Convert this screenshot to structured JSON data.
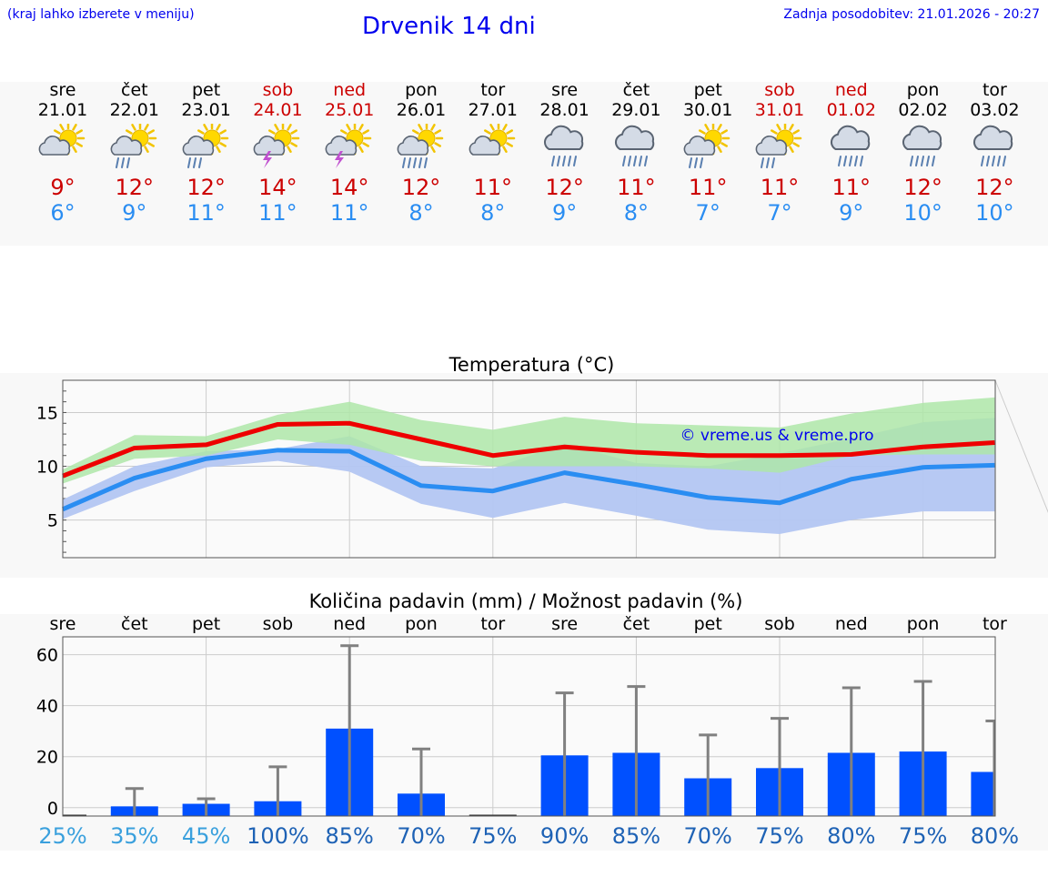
{
  "header": {
    "hint": "(kraj lahko izberete v meniju)",
    "title": "Drvenik 14 dni",
    "updated": "Zadnja posodobitev: 21.01.2026 - 20:27"
  },
  "forecast": [
    {
      "day": "sre",
      "date": "21.01",
      "weekend": false,
      "icon": "sun-cloud-icon",
      "tmax": "9°",
      "tmin": "6°"
    },
    {
      "day": "čet",
      "date": "22.01",
      "weekend": false,
      "icon": "sun-cloud-rain-icon",
      "tmax": "12°",
      "tmin": "9°"
    },
    {
      "day": "pet",
      "date": "23.01",
      "weekend": false,
      "icon": "sun-cloud-rain-icon",
      "tmax": "12°",
      "tmin": "11°"
    },
    {
      "day": "sob",
      "date": "24.01",
      "weekend": true,
      "icon": "sun-cloud-storm-icon",
      "tmax": "14°",
      "tmin": "11°"
    },
    {
      "day": "ned",
      "date": "25.01",
      "weekend": true,
      "icon": "sun-cloud-storm-icon",
      "tmax": "14°",
      "tmin": "11°"
    },
    {
      "day": "pon",
      "date": "26.01",
      "weekend": false,
      "icon": "sun-cloud-heavy-rain-icon",
      "tmax": "12°",
      "tmin": "8°"
    },
    {
      "day": "tor",
      "date": "27.01",
      "weekend": false,
      "icon": "sun-cloud-icon",
      "tmax": "11°",
      "tmin": "8°"
    },
    {
      "day": "sre",
      "date": "28.01",
      "weekend": false,
      "icon": "cloud-heavy-rain-icon",
      "tmax": "12°",
      "tmin": "9°"
    },
    {
      "day": "čet",
      "date": "29.01",
      "weekend": false,
      "icon": "cloud-heavy-rain-icon",
      "tmax": "11°",
      "tmin": "8°"
    },
    {
      "day": "pet",
      "date": "30.01",
      "weekend": false,
      "icon": "sun-cloud-rain-icon",
      "tmax": "11°",
      "tmin": "7°"
    },
    {
      "day": "sob",
      "date": "31.01",
      "weekend": true,
      "icon": "sun-cloud-rain-icon",
      "tmax": "11°",
      "tmin": "7°"
    },
    {
      "day": "ned",
      "date": "01.02",
      "weekend": true,
      "icon": "cloud-heavy-rain-icon",
      "tmax": "11°",
      "tmin": "9°"
    },
    {
      "day": "pon",
      "date": "02.02",
      "weekend": false,
      "icon": "cloud-heavy-rain-icon",
      "tmax": "12°",
      "tmin": "10°"
    },
    {
      "day": "tor",
      "date": "03.02",
      "weekend": false,
      "icon": "cloud-heavy-rain-icon",
      "tmax": "12°",
      "tmin": "10°"
    }
  ],
  "colors": {
    "max_line": "#ee0000",
    "min_line": "#2a8df2",
    "max_band": "#aee6a8",
    "min_band": "#b3c6f2",
    "overlap_band": "#86c4a6",
    "bar": "#0050ff",
    "whisker": "#808080"
  },
  "chart_data": [
    {
      "type": "line",
      "title": "Temperatura (°C)",
      "watermark": "© vreme.us & vreme.pro",
      "ylim": [
        1.5,
        18
      ],
      "yticks": [
        5,
        10,
        15
      ],
      "grid": true,
      "series": [
        {
          "name": "max",
          "values": [
            9.1,
            11.7,
            12.0,
            13.9,
            14.0,
            12.5,
            11.0,
            11.8,
            11.3,
            11.0,
            11.0,
            11.1,
            11.8,
            12.2
          ]
        },
        {
          "name": "min",
          "values": [
            6.0,
            8.9,
            10.7,
            11.5,
            11.4,
            8.2,
            7.7,
            9.4,
            8.3,
            7.1,
            6.6,
            8.8,
            9.9,
            10.1
          ]
        },
        {
          "name": "max_band_low",
          "values": [
            8.4,
            10.7,
            11.0,
            12.5,
            12.0,
            10.5,
            10.0,
            10.0,
            10.0,
            9.8,
            9.4,
            11.0,
            11.1,
            11.1
          ]
        },
        {
          "name": "max_band_high",
          "values": [
            9.7,
            12.9,
            12.8,
            14.8,
            16.0,
            14.3,
            13.4,
            14.6,
            14.0,
            13.8,
            13.6,
            14.9,
            15.9,
            16.4
          ]
        },
        {
          "name": "min_band_low",
          "values": [
            5.1,
            7.7,
            9.9,
            10.5,
            9.5,
            6.5,
            5.2,
            6.6,
            5.4,
            4.1,
            3.7,
            5.0,
            5.8,
            5.8
          ]
        },
        {
          "name": "min_band_high",
          "values": [
            6.9,
            10.0,
            11.4,
            11.6,
            12.8,
            10.0,
            9.8,
            12.1,
            10.3,
            10.0,
            11.2,
            12.6,
            14.1,
            14.5
          ]
        }
      ]
    },
    {
      "type": "bar",
      "title": "Količina padavin (mm) / Možnost padavin (%)",
      "categories": [
        "sre",
        "čet",
        "pet",
        "sob",
        "ned",
        "pon",
        "tor",
        "sre",
        "čet",
        "pet",
        "sob",
        "ned",
        "pon",
        "tor"
      ],
      "ylim": [
        -3.3,
        67
      ],
      "yticks": [
        0,
        20,
        40,
        60
      ],
      "values": [
        0,
        0.5,
        1.5,
        2.5,
        31,
        5.5,
        0,
        20.5,
        21.5,
        11.5,
        15.5,
        21.5,
        22,
        14
      ],
      "error_high": [
        0,
        7.5,
        3.5,
        16,
        63.5,
        23,
        0,
        45,
        47.5,
        28.5,
        35,
        47,
        49.5,
        34
      ],
      "probabilities": [
        "25%",
        "35%",
        "45%",
        "100%",
        "85%",
        "70%",
        "75%",
        "90%",
        "85%",
        "70%",
        "75%",
        "80%",
        "75%",
        "80%"
      ],
      "probability_colors": [
        "#3aa0dd",
        "#3aa0dd",
        "#3aa0dd",
        "#1e62b5",
        "#1e62b5",
        "#1e62b5",
        "#1e62b5",
        "#1e62b5",
        "#1e62b5",
        "#1e62b5",
        "#1e62b5",
        "#1e62b5",
        "#1e62b5",
        "#1e62b5"
      ]
    }
  ]
}
